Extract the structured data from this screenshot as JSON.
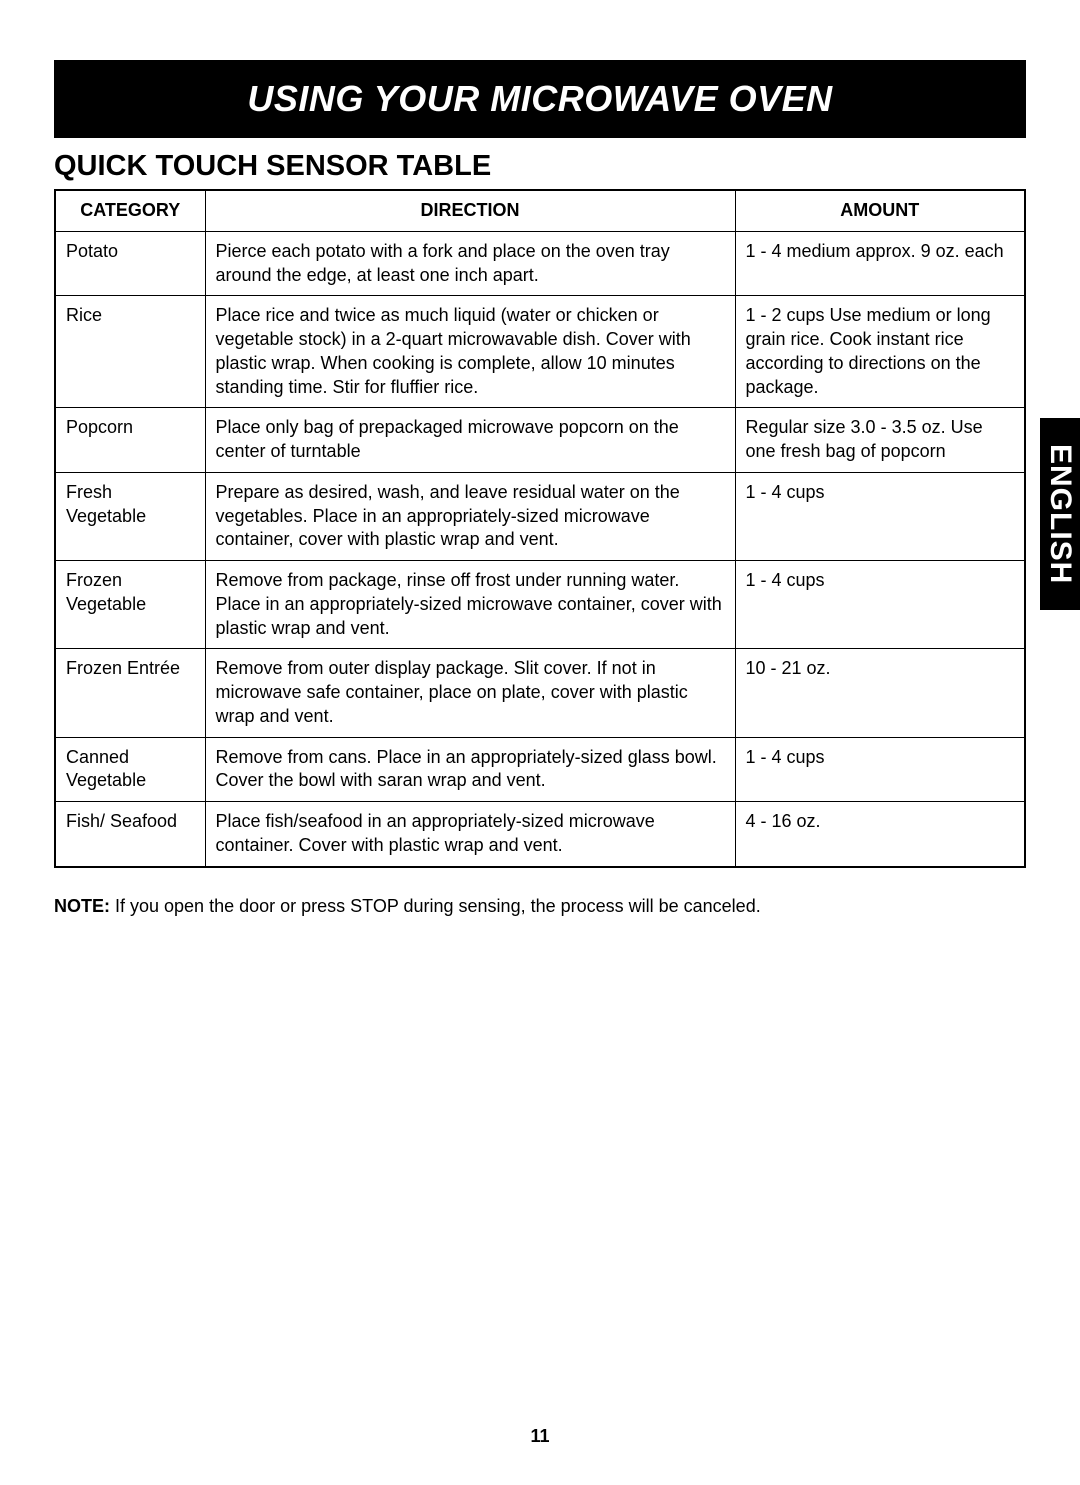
{
  "banner": {
    "title": "USING YOUR MICROWAVE OVEN"
  },
  "section": {
    "title": "QUICK TOUCH SENSOR TABLE"
  },
  "table": {
    "headers": {
      "category": "CATEGORY",
      "direction": "DIRECTION",
      "amount": "AMOUNT"
    },
    "rows": [
      {
        "category": "Potato",
        "direction": "Pierce each potato with a fork and place on the oven tray around the edge, at least one inch apart.",
        "amount": "1 - 4 medium approx. 9 oz. each"
      },
      {
        "category": "Rice",
        "direction": "Place rice and twice as much liquid (water or chicken or vegetable stock) in a 2-quart microwavable dish. Cover with plastic wrap. When cooking is complete, allow 10 minutes standing time. Stir for fluffier rice.",
        "amount": "1 - 2 cups\nUse medium or long grain rice. Cook instant rice according to directions on the package."
      },
      {
        "category": "Popcorn",
        "direction": "Place only bag of prepackaged microwave popcorn on the center of turntable",
        "amount": "Regular size 3.0 - 3.5 oz.\nUse one fresh bag of popcorn"
      },
      {
        "category": "Fresh Vegetable",
        "direction": "Prepare as desired, wash, and leave residual water on the vegetables. Place in an appropriately-sized microwave container, cover with plastic wrap and vent.",
        "amount": "1 - 4 cups"
      },
      {
        "category": "Frozen Vegetable",
        "direction": "Remove from package, rinse off frost under running water. Place in an appropriately-sized microwave container, cover with plastic wrap and vent.",
        "amount": "1 - 4 cups"
      },
      {
        "category": "Frozen Entrée",
        "direction": "Remove from outer display package. Slit cover. If not in microwave safe container, place on plate, cover with plastic wrap and vent.",
        "amount": "10 - 21 oz."
      },
      {
        "category": "Canned Vegetable",
        "direction": "Remove from cans. Place in an appropriately-sized glass bowl. Cover the bowl with saran wrap and vent.",
        "amount": "1 - 4 cups"
      },
      {
        "category": "Fish/ Seafood",
        "direction": "Place fish/seafood in an appropriately-sized microwave container. Cover with plastic wrap and vent.",
        "amount": "4 - 16 oz."
      }
    ]
  },
  "note": {
    "label": "NOTE:",
    "text": " If you open the door or press STOP during sensing, the process will be canceled."
  },
  "side_tab": {
    "text": "ENGLISH"
  },
  "page_number": "11",
  "colors": {
    "banner_bg": "#000000",
    "banner_text": "#ffffff",
    "page_bg": "#ffffff",
    "text": "#000000",
    "border": "#000000"
  },
  "typography": {
    "banner_fontsize": 36,
    "section_title_fontsize": 29,
    "body_fontsize": 18,
    "side_tab_fontsize": 30
  }
}
